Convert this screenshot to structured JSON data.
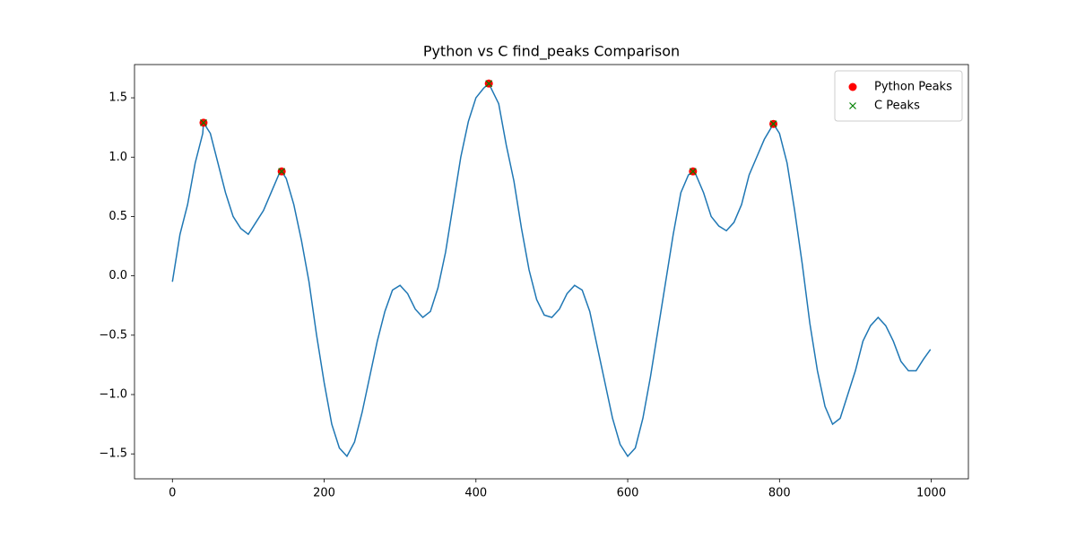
{
  "chart_data": {
    "type": "line",
    "title": "Python vs C find_peaks Comparison",
    "xlim": [
      -49.95,
      1048.95
    ],
    "ylim": [
      -1.71,
      1.78
    ],
    "xticks": [
      0,
      200,
      400,
      600,
      800,
      1000
    ],
    "yticks": [
      {
        "value": -1.5,
        "label": "−1.5"
      },
      {
        "value": -1.0,
        "label": "−1.0"
      },
      {
        "value": -0.5,
        "label": "−0.5"
      },
      {
        "value": 0,
        "label": "0.0"
      },
      0.5,
      {
        "value": 1.0,
        "label": "1.0"
      },
      1.5
    ],
    "legend": "upper right",
    "series": [
      {
        "type": "line",
        "color": "#1f77b4",
        "x": [
          0,
          10,
          20,
          30,
          40,
          41,
          50,
          60,
          70,
          80,
          90,
          100,
          110,
          120,
          130,
          140,
          144,
          150,
          160,
          170,
          180,
          190,
          200,
          210,
          220,
          230,
          240,
          250,
          260,
          270,
          280,
          290,
          300,
          310,
          320,
          330,
          340,
          350,
          360,
          370,
          380,
          390,
          400,
          410,
          417,
          420,
          430,
          440,
          450,
          460,
          470,
          480,
          490,
          500,
          510,
          520,
          530,
          540,
          550,
          560,
          570,
          580,
          590,
          600,
          610,
          620,
          630,
          640,
          650,
          660,
          670,
          680,
          686,
          690,
          700,
          710,
          720,
          730,
          740,
          750,
          760,
          770,
          780,
          792,
          800,
          810,
          820,
          830,
          840,
          850,
          860,
          870,
          880,
          890,
          900,
          910,
          920,
          930,
          940,
          950,
          960,
          970,
          980,
          990,
          999
        ],
        "values": [
          -0.05,
          0.35,
          0.6,
          0.95,
          1.2,
          1.29,
          1.2,
          0.95,
          0.7,
          0.5,
          0.4,
          0.35,
          0.45,
          0.55,
          0.7,
          0.85,
          0.88,
          0.82,
          0.6,
          0.3,
          -0.05,
          -0.5,
          -0.9,
          -1.25,
          -1.45,
          -1.52,
          -1.4,
          -1.15,
          -0.85,
          -0.55,
          -0.3,
          -0.12,
          -0.08,
          -0.15,
          -0.28,
          -0.35,
          -0.3,
          -0.1,
          0.2,
          0.6,
          1.0,
          1.3,
          1.5,
          1.58,
          1.62,
          1.58,
          1.45,
          1.1,
          0.8,
          0.4,
          0.05,
          -0.2,
          -0.33,
          -0.35,
          -0.28,
          -0.15,
          -0.08,
          -0.12,
          -0.3,
          -0.6,
          -0.9,
          -1.2,
          -1.42,
          -1.52,
          -1.45,
          -1.2,
          -0.85,
          -0.45,
          -0.05,
          0.35,
          0.7,
          0.85,
          0.88,
          0.85,
          0.7,
          0.5,
          0.42,
          0.38,
          0.45,
          0.6,
          0.85,
          1.0,
          1.15,
          1.28,
          1.2,
          0.95,
          0.55,
          0.1,
          -0.4,
          -0.8,
          -1.1,
          -1.25,
          -1.2,
          -1.0,
          -0.8,
          -0.55,
          -0.42,
          -0.35,
          -0.42,
          -0.55,
          -0.72,
          -0.8,
          -0.8,
          -0.7,
          -0.62
        ]
      },
      {
        "type": "scatter",
        "name": "Python Peaks",
        "marker": "o",
        "color": "#ff0000",
        "x": [
          41,
          144,
          417,
          686,
          792
        ],
        "values": [
          1.29,
          0.88,
          1.62,
          0.88,
          1.28
        ]
      },
      {
        "type": "scatter",
        "name": "C Peaks",
        "marker": "x",
        "color": "#008000",
        "x": [
          41,
          144,
          417,
          686,
          792
        ],
        "values": [
          1.29,
          0.88,
          1.62,
          0.88,
          1.28
        ]
      }
    ]
  }
}
